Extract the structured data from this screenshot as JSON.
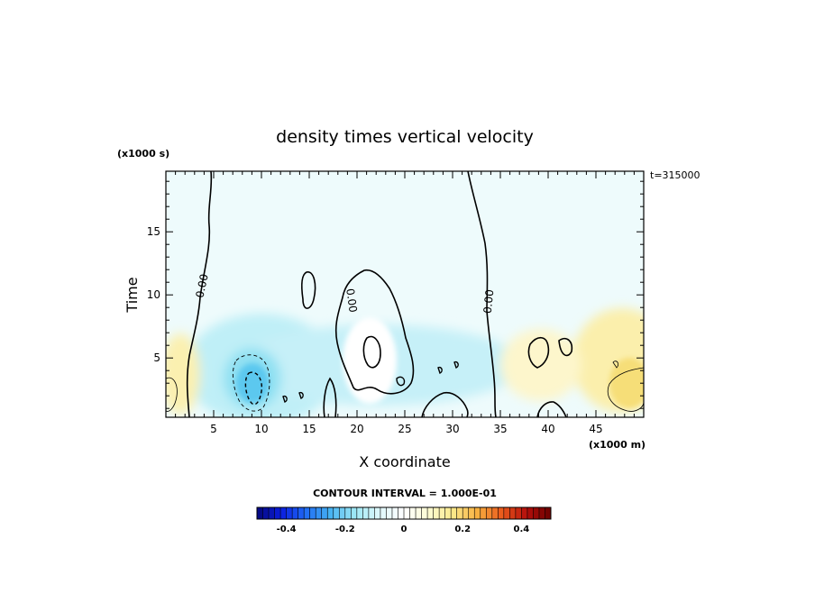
{
  "chart_data": {
    "type": "heatmap",
    "title": "density times vertical velocity",
    "xlabel": "X coordinate",
    "ylabel": "Time",
    "x_multiplier": "(x1000 m)",
    "y_multiplier": "(x1000 s)",
    "time_stamp": "t=315000",
    "contour_interval_label": "CONTOUR INTERVAL = 1.000E-01",
    "contour_label": "0.00",
    "xlim": [
      0,
      50
    ],
    "ylim": [
      0.3,
      19.8
    ],
    "x_ticks": [
      5,
      10,
      15,
      20,
      25,
      30,
      35,
      40,
      45
    ],
    "y_ticks": [
      5,
      10,
      15
    ],
    "colorbar": {
      "min": -0.5,
      "max": 0.5,
      "ticks": [
        -0.4,
        -0.2,
        0,
        0.2,
        0.4
      ],
      "tick_labels": [
        "-0.4",
        "-0.2",
        "0",
        "0.2",
        "0.4"
      ]
    },
    "grid": false,
    "colormap": [
      "#06077a",
      "#0a1ee0",
      "#1f6cf5",
      "#47b3f2",
      "#9ee8f5",
      "#dff8fb",
      "#ffffff",
      "#fdfbd3",
      "#fbe98a",
      "#f8b040",
      "#ea5a1c",
      "#b50f0c",
      "#6a0000"
    ]
  }
}
